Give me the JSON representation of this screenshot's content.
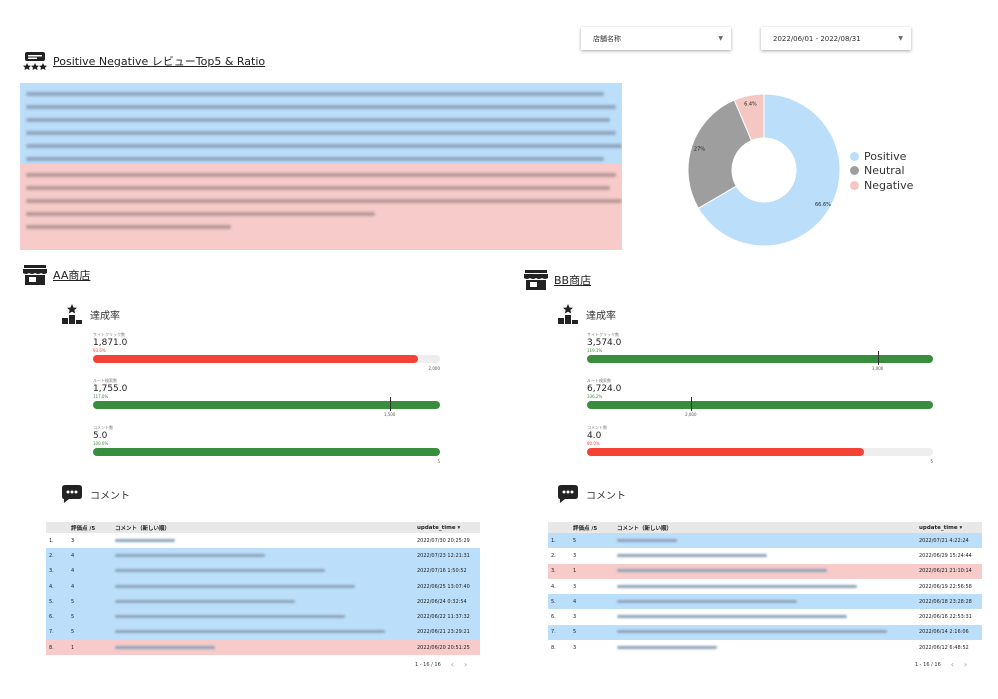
{
  "filters": {
    "store": {
      "label": "店舗名称"
    },
    "date_range": {
      "label": "2022/06/01 - 2022/08/31"
    }
  },
  "summary": {
    "title": "Positive Negative レビューTop5 & Ratio"
  },
  "chart_data": {
    "type": "pie",
    "categories": [
      "Positive",
      "Neutral",
      "Negative"
    ],
    "values": [
      66.6,
      27,
      6.4
    ],
    "labels": [
      "66.6%",
      "27%",
      "6.4%"
    ],
    "colors": [
      "#bbdefb",
      "#9e9e9e",
      "#f4c7c3"
    ],
    "legend": "right"
  },
  "stores": [
    {
      "name": "AA商店",
      "kpi_title": "達成率",
      "kpis": [
        {
          "label": "サイトクリック数",
          "value": "1,871.0",
          "pct": "93.6%",
          "pct_color": "#f44336",
          "ratio": 0.936,
          "bar_color": "#f44336",
          "max_label": "2,000",
          "target_label": "",
          "target_ratio": null
        },
        {
          "label": "ルート検索数",
          "value": "1,755.0",
          "pct": "117.0%",
          "pct_color": "#388e3c",
          "ratio": 1.0,
          "bar_color": "#388e3c",
          "max_label": "",
          "target_label": "1,500",
          "target_ratio": 0.855
        },
        {
          "label": "コメント数",
          "value": "5.0",
          "pct": "100.0%",
          "pct_color": "#388e3c",
          "ratio": 1.0,
          "bar_color": "#388e3c",
          "max_label": "5",
          "target_label": "",
          "target_ratio": null
        }
      ],
      "comment_title": "コメント",
      "table": {
        "headers": [
          "",
          "評価点 /5",
          "コメント（新しい順）",
          "update_time ▾"
        ],
        "rows": [
          {
            "no": "1.",
            "score": "3",
            "time": "2022/07/30 20:25:29",
            "tone": "neu"
          },
          {
            "no": "2.",
            "score": "4",
            "time": "2022/07/23 12:21:31",
            "tone": "pos"
          },
          {
            "no": "3.",
            "score": "4",
            "time": "2022/07/16 1:50:52",
            "tone": "pos"
          },
          {
            "no": "4.",
            "score": "4",
            "time": "2022/06/25 13:07:40",
            "tone": "pos"
          },
          {
            "no": "5.",
            "score": "5",
            "time": "2022/06/24 0:32:54",
            "tone": "pos"
          },
          {
            "no": "6.",
            "score": "5",
            "time": "2022/06/22 11:37:32",
            "tone": "pos"
          },
          {
            "no": "7.",
            "score": "5",
            "time": "2022/06/21 23:29:21",
            "tone": "pos"
          },
          {
            "no": "8.",
            "score": "1",
            "time": "2022/06/20 20:51:25",
            "tone": "neg"
          }
        ],
        "pager": "1 - 16 / 16"
      }
    },
    {
      "name": "BB商店",
      "kpi_title": "達成率",
      "kpis": [
        {
          "label": "サイトクリック数",
          "value": "3,574.0",
          "pct": "119.1%",
          "pct_color": "#388e3c",
          "ratio": 1.0,
          "bar_color": "#388e3c",
          "max_label": "",
          "target_label": "3,000",
          "target_ratio": 0.84
        },
        {
          "label": "ルート検索数",
          "value": "6,724.0",
          "pct": "336.2%",
          "pct_color": "#388e3c",
          "ratio": 1.0,
          "bar_color": "#388e3c",
          "max_label": "",
          "target_label": "2,000",
          "target_ratio": 0.3
        },
        {
          "label": "コメント数",
          "value": "4.0",
          "pct": "80.0%",
          "pct_color": "#f44336",
          "ratio": 0.8,
          "bar_color": "#f44336",
          "max_label": "5",
          "target_label": "",
          "target_ratio": null
        }
      ],
      "comment_title": "コメント",
      "table": {
        "headers": [
          "",
          "評価点 /5",
          "コメント（新しい順）",
          "update_time ▾"
        ],
        "rows": [
          {
            "no": "1.",
            "score": "5",
            "time": "2022/07/21 4:22:24",
            "tone": "pos"
          },
          {
            "no": "2.",
            "score": "3",
            "time": "2022/06/29 15:24:44",
            "tone": "neu"
          },
          {
            "no": "3.",
            "score": "1",
            "time": "2022/06/21 21:10:14",
            "tone": "neg"
          },
          {
            "no": "4.",
            "score": "3",
            "time": "2022/06/19 22:56:58",
            "tone": "neu"
          },
          {
            "no": "5.",
            "score": "4",
            "time": "2022/06/18 23:28:28",
            "tone": "pos"
          },
          {
            "no": "6.",
            "score": "3",
            "time": "2022/06/16 22:53:31",
            "tone": "neu"
          },
          {
            "no": "7.",
            "score": "5",
            "time": "2022/06/14 2:16:06",
            "tone": "pos"
          },
          {
            "no": "8.",
            "score": "3",
            "time": "2022/06/12 6:48:52",
            "tone": "neu"
          }
        ],
        "pager": "1 - 16 / 16"
      }
    }
  ]
}
